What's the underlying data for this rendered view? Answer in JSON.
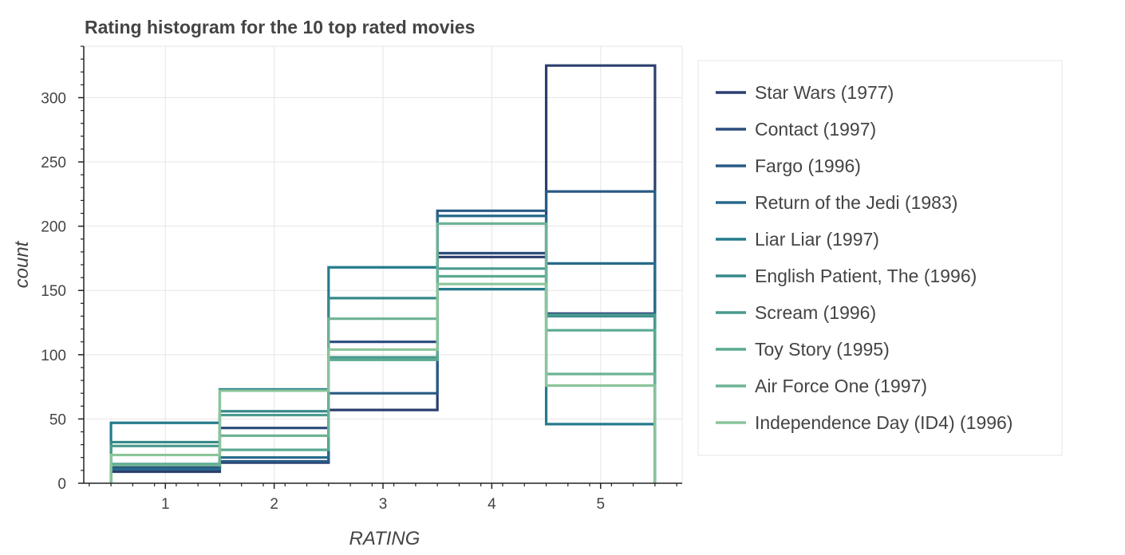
{
  "chart_data": {
    "type": "line",
    "subtype": "step-histogram",
    "title": "Rating histogram for the 10 top rated movies",
    "xlabel": "RATING",
    "ylabel": "count",
    "xlim": [
      0.25,
      5.75
    ],
    "ylim": [
      0,
      340
    ],
    "xticks": [
      1,
      2,
      3,
      4,
      5
    ],
    "yticks": [
      0,
      50,
      100,
      150,
      200,
      250,
      300
    ],
    "grid": true,
    "legend_position": "right",
    "categories": [
      1,
      2,
      3,
      4,
      5
    ],
    "series": [
      {
        "name": "Star Wars (1977)",
        "color": "#2c3e6e",
        "values": [
          9,
          16,
          57,
          176,
          325
        ]
      },
      {
        "name": "Contact (1997)",
        "color": "#2b4b7c",
        "values": [
          13,
          43,
          110,
          179,
          132
        ]
      },
      {
        "name": "Fargo (1996)",
        "color": "#285a85",
        "values": [
          11,
          17,
          70,
          212,
          227
        ]
      },
      {
        "name": "Return of the Jedi (1983)",
        "color": "#266a8a",
        "values": [
          11,
          20,
          98,
          208,
          171
        ]
      },
      {
        "name": "Liar Liar (1997)",
        "color": "#257b8c",
        "values": [
          47,
          73,
          168,
          151,
          46
        ]
      },
      {
        "name": "English Patient, The (1996)",
        "color": "#37898a",
        "values": [
          32,
          56,
          144,
          202,
          130
        ]
      },
      {
        "name": "Scream (1996)",
        "color": "#4a9a8e",
        "values": [
          29,
          53,
          98,
          167,
          131
        ]
      },
      {
        "name": "Toy Story (1995)",
        "color": "#5aaa92",
        "values": [
          15,
          26,
          96,
          161,
          119
        ]
      },
      {
        "name": "Air Force One (1997)",
        "color": "#6db394",
        "values": [
          14,
          37,
          128,
          202,
          85
        ]
      },
      {
        "name": "Independence Day (ID4) (1996)",
        "color": "#8bc59a",
        "values": [
          22,
          72,
          104,
          155,
          76
        ]
      }
    ]
  }
}
